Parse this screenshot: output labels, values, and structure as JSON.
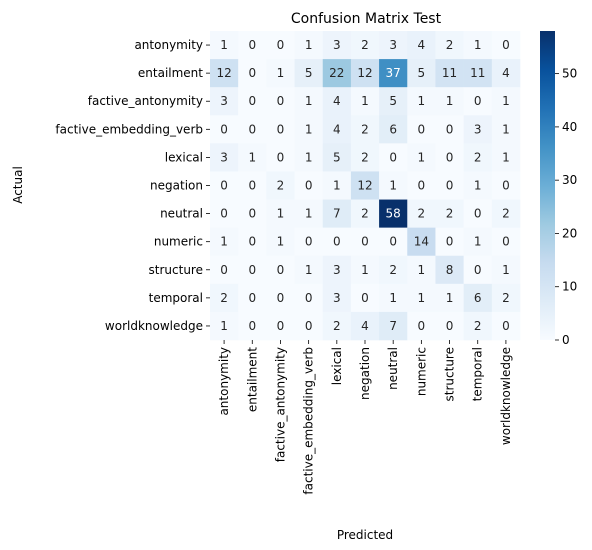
{
  "chart_data": {
    "type": "heatmap",
    "title": "Confusion Matrix Test",
    "xlabel": "Predicted",
    "ylabel": "Actual",
    "categories": [
      "antonymity",
      "entailment",
      "factive_antonymity",
      "factive_embedding_verb",
      "lexical",
      "negation",
      "neutral",
      "numeric",
      "structure",
      "temporal",
      "worldknowledge"
    ],
    "matrix": [
      [
        1,
        0,
        0,
        1,
        3,
        2,
        3,
        4,
        2,
        1,
        0
      ],
      [
        12,
        0,
        1,
        5,
        22,
        12,
        37,
        5,
        11,
        11,
        4
      ],
      [
        3,
        0,
        0,
        1,
        4,
        1,
        5,
        1,
        1,
        0,
        1
      ],
      [
        0,
        0,
        0,
        1,
        4,
        2,
        6,
        0,
        0,
        3,
        1
      ],
      [
        3,
        1,
        0,
        1,
        5,
        2,
        0,
        1,
        0,
        2,
        1
      ],
      [
        0,
        0,
        2,
        0,
        1,
        12,
        1,
        0,
        0,
        1,
        0
      ],
      [
        0,
        0,
        1,
        1,
        7,
        2,
        58,
        2,
        2,
        0,
        2
      ],
      [
        1,
        0,
        1,
        0,
        0,
        0,
        0,
        14,
        0,
        1,
        0
      ],
      [
        0,
        0,
        0,
        1,
        3,
        1,
        2,
        1,
        8,
        0,
        1
      ],
      [
        2,
        0,
        0,
        0,
        3,
        0,
        1,
        1,
        1,
        6,
        2
      ],
      [
        1,
        0,
        0,
        0,
        2,
        4,
        7,
        0,
        0,
        2,
        0
      ]
    ],
    "vmin": 0,
    "vmax": 58,
    "colorbar_ticks": [
      0,
      10,
      20,
      30,
      40,
      50
    ],
    "colormap": [
      "#f7fbff",
      "#deebf7",
      "#c6dbef",
      "#9ecae1",
      "#6baed6",
      "#4292c6",
      "#2171b5",
      "#08519c",
      "#08306b"
    ]
  }
}
